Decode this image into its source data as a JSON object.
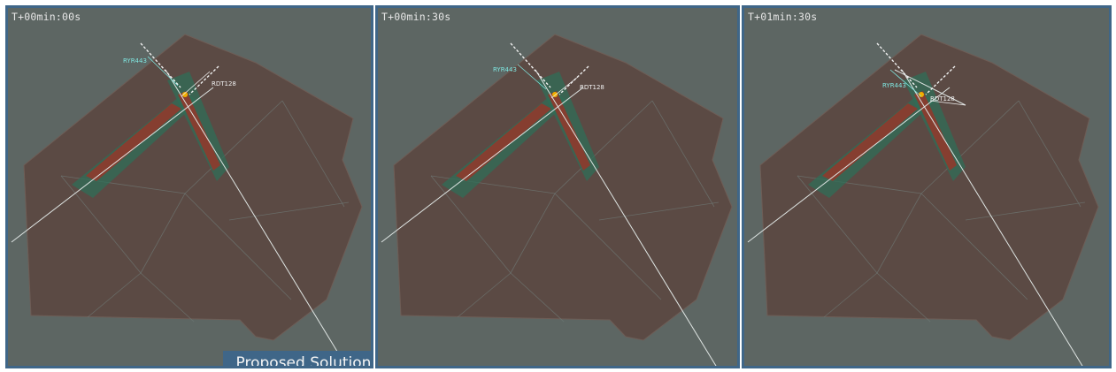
{
  "panels": [
    {
      "time_label": "T+00min:00s",
      "flight_a": "RYR443",
      "flight_b": "RDT128",
      "show_caption": true
    },
    {
      "time_label": "T+00min:30s",
      "flight_a": "RYR443",
      "flight_b": "RDT128",
      "show_caption": false
    },
    {
      "time_label": "T+01min:30s",
      "flight_a": "RYR443",
      "flight_b": "RDT128",
      "show_caption": false
    }
  ],
  "caption": "Proposed Solution",
  "colors": {
    "panel_bg": "#5d6663",
    "panel_border": "#3f6688",
    "sector": "#5b4a44",
    "sector_lines": "#6f7a76",
    "route_line": "#dfe5e3",
    "track_red": "#8a3c2e",
    "track_green": "#2f6d57",
    "label_cyan": "#7fe6e0",
    "label_white": "#f0f0f0",
    "conflict": "#f0b000"
  }
}
